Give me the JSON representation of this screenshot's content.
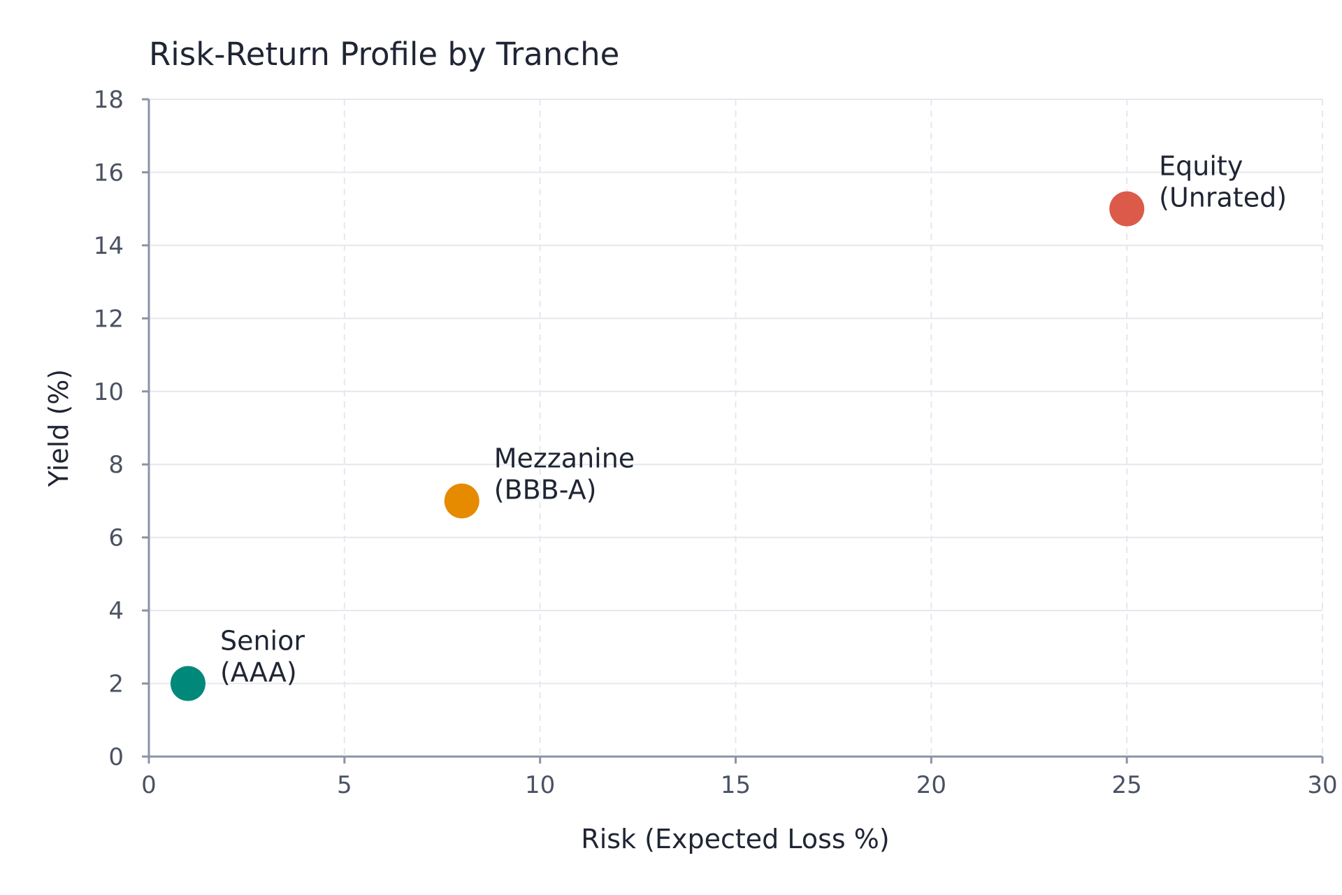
{
  "chart_data": {
    "type": "scatter",
    "title": "Risk-Return Profile by Tranche",
    "xlabel": "Risk (Expected Loss %)",
    "ylabel": "Yield (%)",
    "xlim": [
      0,
      30
    ],
    "ylim": [
      0,
      18
    ],
    "xticks": [
      0,
      5,
      10,
      15,
      20,
      25,
      30
    ],
    "yticks": [
      0,
      2,
      4,
      6,
      8,
      10,
      12,
      14,
      16,
      18
    ],
    "grid": true,
    "points": [
      {
        "x": 1,
        "y": 2,
        "label": [
          "Senior",
          "(AAA)"
        ],
        "color": "#00897b"
      },
      {
        "x": 8,
        "y": 7,
        "label": [
          "Mezzanine",
          "(BBB-A)"
        ],
        "color": "#e68a00"
      },
      {
        "x": 25,
        "y": 15,
        "label": [
          "Equity",
          "(Unrated)"
        ],
        "color": "#dc5a4a"
      }
    ]
  }
}
